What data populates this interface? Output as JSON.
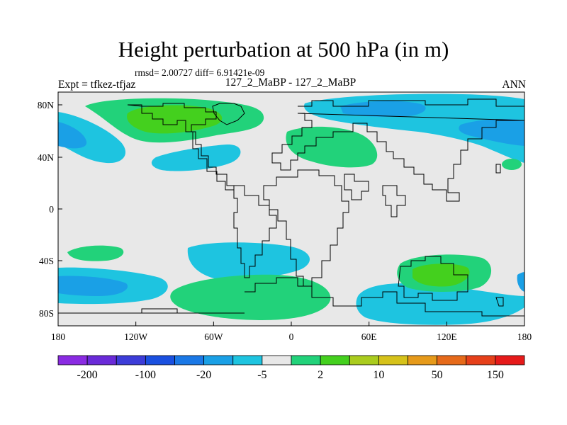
{
  "title": "Height perturbation at 500 hPa (in m)",
  "stats": "rmsd= 2.00727 diff= 6.91421e-09",
  "left_label": "Expt = tfkez-tfjaz",
  "center_label": "127_2_MaBP - 127_2_MaBP",
  "right_label": "ANN",
  "x_ticks": [
    "180",
    "120W",
    "60W",
    "0",
    "60E",
    "120E",
    "180"
  ],
  "y_ticks": [
    "80N",
    "40N",
    "0",
    "40S",
    "80S"
  ],
  "colorbar": {
    "colors": [
      "#8a2be2",
      "#6a2ad8",
      "#3c3cd8",
      "#1a50e0",
      "#1a78e6",
      "#1aa0e6",
      "#1ec4e0",
      "#e8e8e8",
      "#22d27a",
      "#44d01e",
      "#aacc1e",
      "#d6c21a",
      "#e69a1a",
      "#e66a1a",
      "#e6401a",
      "#e61a1a"
    ],
    "labels": [
      "-200",
      "-100",
      "-20",
      "-5",
      "2",
      "10",
      "50",
      "150"
    ]
  },
  "colors": {
    "background": "#e8e8e8",
    "light_blue": "#1ec4e0",
    "blue": "#1aa0e6",
    "green": "#22d27a",
    "bright_green": "#44d01e"
  }
}
